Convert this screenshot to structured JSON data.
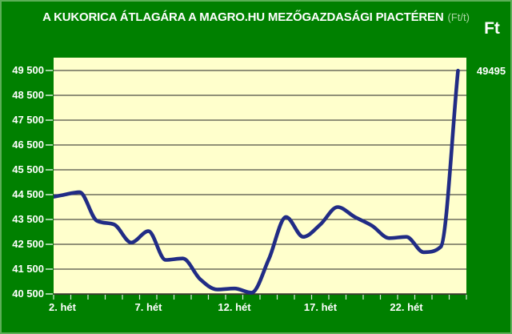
{
  "chart_data": {
    "type": "line",
    "title": "A KUKORICA ÁTLAGÁRA A MAGRO.HU MEZŐGAZDASÁGI PIACTÉREN",
    "title_unit": "(Ft/t)",
    "unit_badge": "Ft",
    "x_axis_unit": "hét",
    "x": [
      1,
      2,
      3,
      4,
      5,
      6,
      7,
      8,
      9,
      10,
      11,
      12,
      13,
      14,
      15,
      16,
      17,
      18,
      19,
      20,
      21,
      22,
      23,
      24,
      25
    ],
    "series": [
      {
        "name": "kukorica átlagár (Ft/t)",
        "values": [
          44350,
          44480,
          44600,
          43450,
          43300,
          42570,
          43030,
          41870,
          41930,
          41100,
          40680,
          40720,
          40550,
          41900,
          43600,
          42800,
          43300,
          44000,
          43600,
          43250,
          42750,
          42800,
          42180,
          42400,
          49495
        ]
      }
    ],
    "x_tick_label_weeks": [
      2,
      7,
      12,
      17,
      22
    ],
    "x_tick_labels": [
      "2. hét",
      "7. hét",
      "12. hét",
      "17. hét",
      "22. hét"
    ],
    "y_ticks": [
      40500,
      41500,
      42500,
      43500,
      44500,
      45500,
      46500,
      47500,
      48500,
      49500
    ],
    "y_tick_labels": [
      "40 500",
      "41 500",
      "42 500",
      "43 500",
      "44 500",
      "45 500",
      "46 500",
      "47 500",
      "48 500",
      "49 500"
    ],
    "ylim": [
      40500,
      49500
    ],
    "xlim_weeks": [
      1,
      25
    ],
    "last_value_label": "49495",
    "grid": "horizontal",
    "legend": "none",
    "colors": {
      "background": "#008000",
      "plot_bg": "#FFFFCC",
      "line": "#212c85",
      "gridline": "#4f4f45",
      "axis_line": "#3a3a30",
      "tick": "#d9efd9",
      "label_text": "#FFFFFF",
      "title_unit_text": "#aed7a8"
    }
  }
}
